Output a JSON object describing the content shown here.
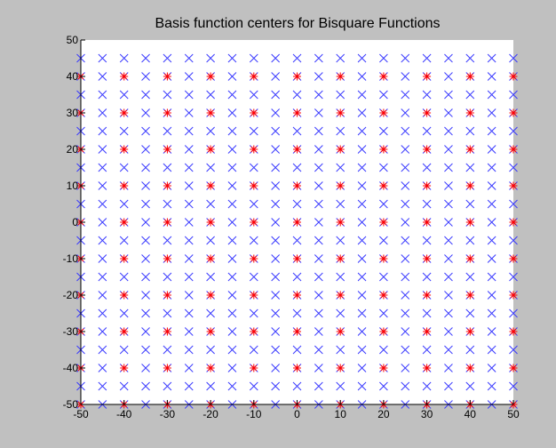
{
  "chart_data": {
    "type": "scatter",
    "title": "Basis function centers for Bisquare Functions",
    "xlim": [
      -50,
      50
    ],
    "ylim": [
      -50,
      50
    ],
    "xticks": [
      -50,
      -40,
      -30,
      -20,
      -10,
      0,
      10,
      20,
      30,
      40,
      50
    ],
    "yticks": [
      -50,
      -40,
      -30,
      -20,
      -10,
      0,
      10,
      20,
      30,
      40,
      50
    ],
    "series": [
      {
        "color": "#3a3aff",
        "marker": "x",
        "x": [
          -50,
          -45,
          -40,
          -35,
          -30,
          -25,
          -20,
          -15,
          -10,
          -5,
          0,
          5,
          10,
          15,
          20,
          25,
          30,
          35,
          40,
          45,
          50,
          -50,
          -45,
          -40,
          -35,
          -30,
          -25,
          -20,
          -15,
          -10,
          -5,
          0,
          5,
          10,
          15,
          20,
          25,
          30,
          35,
          40,
          45,
          50,
          -50,
          -45,
          -40,
          -35,
          -30,
          -25,
          -20,
          -15,
          -10,
          -5,
          0,
          5,
          10,
          15,
          20,
          25,
          30,
          35,
          40,
          45,
          50,
          -50,
          -45,
          -40,
          -35,
          -30,
          -25,
          -20,
          -15,
          -10,
          -5,
          0,
          5,
          10,
          15,
          20,
          25,
          30,
          35,
          40,
          45,
          50,
          -50,
          -45,
          -40,
          -35,
          -30,
          -25,
          -20,
          -15,
          -10,
          -5,
          0,
          5,
          10,
          15,
          20,
          25,
          30,
          35,
          40,
          45,
          50,
          -50,
          -45,
          -40,
          -35,
          -30,
          -25,
          -20,
          -15,
          -10,
          -5,
          0,
          5,
          10,
          15,
          20,
          25,
          30,
          35,
          40,
          45,
          50,
          -50,
          -45,
          -40,
          -35,
          -30,
          -25,
          -20,
          -15,
          -10,
          -5,
          0,
          5,
          10,
          15,
          20,
          25,
          30,
          35,
          40,
          45,
          50,
          -50,
          -45,
          -40,
          -35,
          -30,
          -25,
          -20,
          -15,
          -10,
          -5,
          0,
          5,
          10,
          15,
          20,
          25,
          30,
          35,
          40,
          45,
          50,
          -50,
          -45,
          -40,
          -35,
          -30,
          -25,
          -20,
          -15,
          -10,
          -5,
          0,
          5,
          10,
          15,
          20,
          25,
          30,
          35,
          40,
          45,
          50,
          -50,
          -45,
          -40,
          -35,
          -30,
          -25,
          -20,
          -15,
          -10,
          -5,
          0,
          5,
          10,
          15,
          20,
          25,
          30,
          35,
          40,
          45,
          50,
          -50,
          -45,
          -40,
          -35,
          -30,
          -25,
          -20,
          -15,
          -10,
          -5,
          0,
          5,
          10,
          15,
          20,
          25,
          30,
          35,
          40,
          45,
          50,
          -50,
          -45,
          -40,
          -35,
          -30,
          -25,
          -20,
          -15,
          -10,
          -5,
          0,
          5,
          10,
          15,
          20,
          25,
          30,
          35,
          40,
          45,
          50,
          -50,
          -45,
          -40,
          -35,
          -30,
          -25,
          -20,
          -15,
          -10,
          -5,
          0,
          5,
          10,
          15,
          20,
          25,
          30,
          35,
          40,
          45,
          50,
          -50,
          -45,
          -40,
          -35,
          -30,
          -25,
          -20,
          -15,
          -10,
          -5,
          0,
          5,
          10,
          15,
          20,
          25,
          30,
          35,
          40,
          45,
          50,
          -50,
          -45,
          -40,
          -35,
          -30,
          -25,
          -20,
          -15,
          -10,
          -5,
          0,
          5,
          10,
          15,
          20,
          25,
          30,
          35,
          40,
          45,
          50,
          -50,
          -45,
          -40,
          -35,
          -30,
          -25,
          -20,
          -15,
          -10,
          -5,
          0,
          5,
          10,
          15,
          20,
          25,
          30,
          35,
          40,
          45,
          50,
          -50,
          -45,
          -40,
          -35,
          -30,
          -25,
          -20,
          -15,
          -10,
          -5,
          0,
          5,
          10,
          15,
          20,
          25,
          30,
          35,
          40,
          45,
          50,
          -50,
          -45,
          -40,
          -35,
          -30,
          -25,
          -20,
          -15,
          -10,
          -5,
          0,
          5,
          10,
          15,
          20,
          25,
          30,
          35,
          40,
          45,
          50,
          -50,
          -45,
          -40,
          -35,
          -30,
          -25,
          -20,
          -15,
          -10,
          -5,
          0,
          5,
          10,
          15,
          20,
          25,
          30,
          35,
          40,
          45,
          50,
          -50,
          -45,
          -40,
          -35,
          -30,
          -25,
          -20,
          -15,
          -10,
          -5,
          0,
          5,
          10,
          15,
          20,
          25,
          30,
          35,
          40,
          45,
          50
        ],
        "y": [
          -50,
          -50,
          -50,
          -50,
          -50,
          -50,
          -50,
          -50,
          -50,
          -50,
          -50,
          -50,
          -50,
          -50,
          -50,
          -50,
          -50,
          -50,
          -50,
          -50,
          -50,
          -45,
          -45,
          -45,
          -45,
          -45,
          -45,
          -45,
          -45,
          -45,
          -45,
          -45,
          -45,
          -45,
          -45,
          -45,
          -45,
          -45,
          -45,
          -45,
          -45,
          -45,
          -40,
          -40,
          -40,
          -40,
          -40,
          -40,
          -40,
          -40,
          -40,
          -40,
          -40,
          -40,
          -40,
          -40,
          -40,
          -40,
          -40,
          -40,
          -40,
          -40,
          -40,
          -35,
          -35,
          -35,
          -35,
          -35,
          -35,
          -35,
          -35,
          -35,
          -35,
          -35,
          -35,
          -35,
          -35,
          -35,
          -35,
          -35,
          -35,
          -35,
          -35,
          -35,
          -30,
          -30,
          -30,
          -30,
          -30,
          -30,
          -30,
          -30,
          -30,
          -30,
          -30,
          -30,
          -30,
          -30,
          -30,
          -30,
          -30,
          -30,
          -30,
          -30,
          -30,
          -25,
          -25,
          -25,
          -25,
          -25,
          -25,
          -25,
          -25,
          -25,
          -25,
          -25,
          -25,
          -25,
          -25,
          -25,
          -25,
          -25,
          -25,
          -25,
          -25,
          -25,
          -20,
          -20,
          -20,
          -20,
          -20,
          -20,
          -20,
          -20,
          -20,
          -20,
          -20,
          -20,
          -20,
          -20,
          -20,
          -20,
          -20,
          -20,
          -20,
          -20,
          -20,
          -15,
          -15,
          -15,
          -15,
          -15,
          -15,
          -15,
          -15,
          -15,
          -15,
          -15,
          -15,
          -15,
          -15,
          -15,
          -15,
          -15,
          -15,
          -15,
          -15,
          -15,
          -10,
          -10,
          -10,
          -10,
          -10,
          -10,
          -10,
          -10,
          -10,
          -10,
          -10,
          -10,
          -10,
          -10,
          -10,
          -10,
          -10,
          -10,
          -10,
          -10,
          -10,
          -5,
          -5,
          -5,
          -5,
          -5,
          -5,
          -5,
          -5,
          -5,
          -5,
          -5,
          -5,
          -5,
          -5,
          -5,
          -5,
          -5,
          -5,
          -5,
          -5,
          -5,
          0,
          0,
          0,
          0,
          0,
          0,
          0,
          0,
          0,
          0,
          0,
          0,
          0,
          0,
          0,
          0,
          0,
          0,
          0,
          0,
          0,
          5,
          5,
          5,
          5,
          5,
          5,
          5,
          5,
          5,
          5,
          5,
          5,
          5,
          5,
          5,
          5,
          5,
          5,
          5,
          5,
          5,
          10,
          10,
          10,
          10,
          10,
          10,
          10,
          10,
          10,
          10,
          10,
          10,
          10,
          10,
          10,
          10,
          10,
          10,
          10,
          10,
          10,
          15,
          15,
          15,
          15,
          15,
          15,
          15,
          15,
          15,
          15,
          15,
          15,
          15,
          15,
          15,
          15,
          15,
          15,
          15,
          15,
          15,
          20,
          20,
          20,
          20,
          20,
          20,
          20,
          20,
          20,
          20,
          20,
          20,
          20,
          20,
          20,
          20,
          20,
          20,
          20,
          20,
          20,
          25,
          25,
          25,
          25,
          25,
          25,
          25,
          25,
          25,
          25,
          25,
          25,
          25,
          25,
          25,
          25,
          25,
          25,
          25,
          25,
          25,
          30,
          30,
          30,
          30,
          30,
          30,
          30,
          30,
          30,
          30,
          30,
          30,
          30,
          30,
          30,
          30,
          30,
          30,
          30,
          30,
          30,
          35,
          35,
          35,
          35,
          35,
          35,
          35,
          35,
          35,
          35,
          35,
          35,
          35,
          35,
          35,
          35,
          35,
          35,
          35,
          35,
          35,
          40,
          40,
          40,
          40,
          40,
          40,
          40,
          40,
          40,
          40,
          40,
          40,
          40,
          40,
          40,
          40,
          40,
          40,
          40,
          40,
          40,
          45,
          45,
          45,
          45,
          45,
          45,
          45,
          45,
          45,
          45,
          45,
          45,
          45,
          45,
          45,
          45,
          45,
          45,
          45,
          45,
          45
        ]
      },
      {
        "color": "#ff0000",
        "marker": "asterisk",
        "x": [
          -50,
          -40,
          -30,
          -20,
          -10,
          0,
          10,
          20,
          30,
          40,
          50,
          -50,
          -40,
          -30,
          -20,
          -10,
          0,
          10,
          20,
          30,
          40,
          50,
          -50,
          -40,
          -30,
          -20,
          -10,
          0,
          10,
          20,
          30,
          40,
          50,
          -50,
          -40,
          -30,
          -20,
          -10,
          0,
          10,
          20,
          30,
          40,
          50,
          -50,
          -40,
          -30,
          -20,
          -10,
          0,
          10,
          20,
          30,
          40,
          50,
          -50,
          -40,
          -30,
          -20,
          -10,
          0,
          10,
          20,
          30,
          40,
          50,
          -50,
          -40,
          -30,
          -20,
          -10,
          0,
          10,
          20,
          30,
          40,
          50,
          -50,
          -40,
          -30,
          -20,
          -10,
          0,
          10,
          20,
          30,
          40,
          50,
          -50,
          -40,
          -30,
          -20,
          -10,
          0,
          10,
          20,
          30,
          40,
          50,
          -50,
          -40,
          -30,
          -20,
          -10,
          0,
          10,
          20,
          30,
          40,
          50
        ],
        "y": [
          -50,
          -50,
          -50,
          -50,
          -50,
          -50,
          -50,
          -50,
          -50,
          -50,
          -50,
          -40,
          -40,
          -40,
          -40,
          -40,
          -40,
          -40,
          -40,
          -40,
          -40,
          -40,
          -30,
          -30,
          -30,
          -30,
          -30,
          -30,
          -30,
          -30,
          -30,
          -30,
          -30,
          -20,
          -20,
          -20,
          -20,
          -20,
          -20,
          -20,
          -20,
          -20,
          -20,
          -20,
          -10,
          -10,
          -10,
          -10,
          -10,
          -10,
          -10,
          -10,
          -10,
          -10,
          -10,
          0,
          0,
          0,
          0,
          0,
          0,
          0,
          0,
          0,
          0,
          0,
          10,
          10,
          10,
          10,
          10,
          10,
          10,
          10,
          10,
          10,
          10,
          20,
          20,
          20,
          20,
          20,
          20,
          20,
          20,
          20,
          20,
          20,
          30,
          30,
          30,
          30,
          30,
          30,
          30,
          30,
          30,
          30,
          30,
          40,
          40,
          40,
          40,
          40,
          40,
          40,
          40,
          40,
          40,
          40
        ]
      }
    ]
  }
}
